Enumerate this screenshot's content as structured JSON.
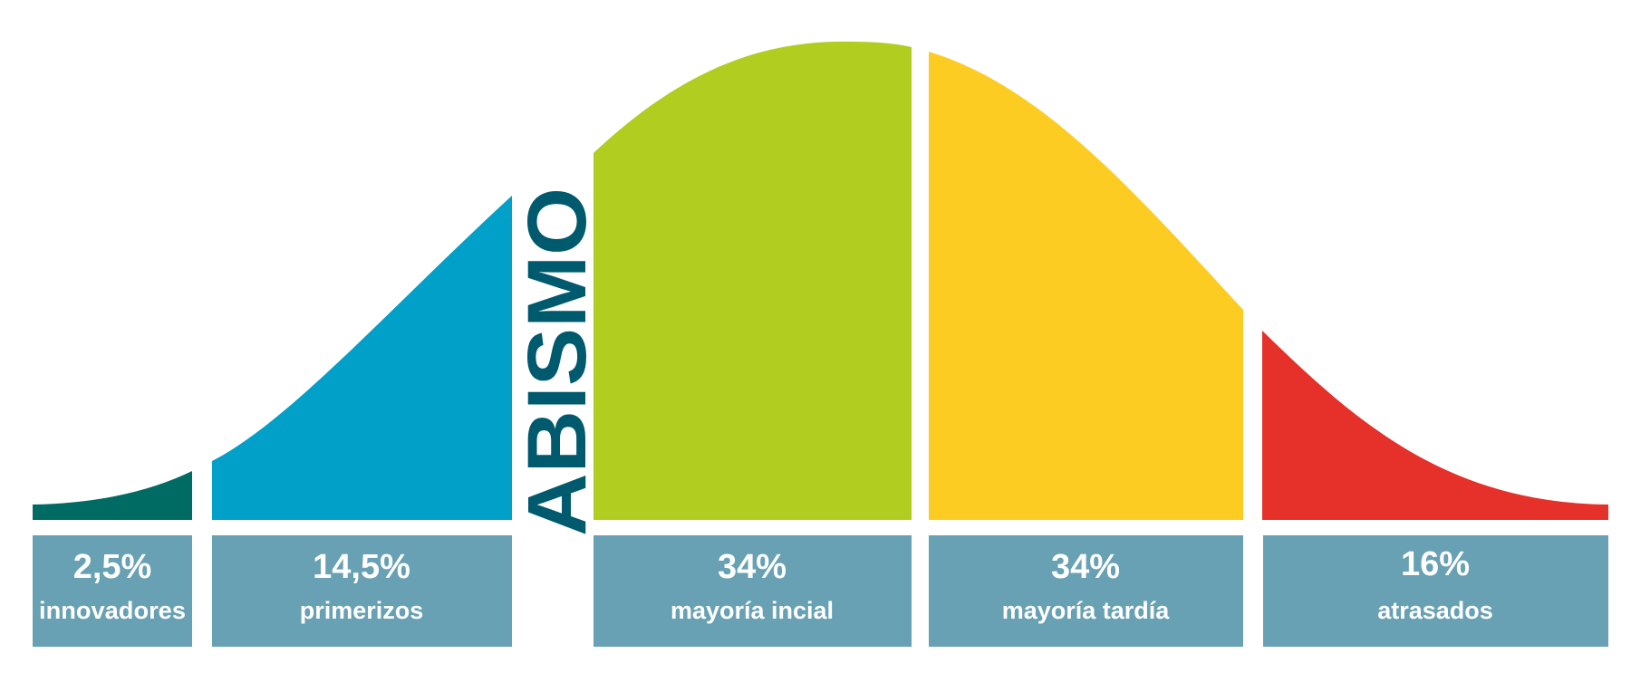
{
  "abyss": "ABISMO",
  "segments": [
    {
      "value": "2,5%",
      "label": "innovadores"
    },
    {
      "value": "14,5%",
      "label": "primerizos"
    },
    {
      "value": "34%",
      "label": "mayoría incial"
    },
    {
      "value": "34%",
      "label": "mayoría tardía"
    },
    {
      "value": "16%",
      "label": "atrasados"
    }
  ]
}
